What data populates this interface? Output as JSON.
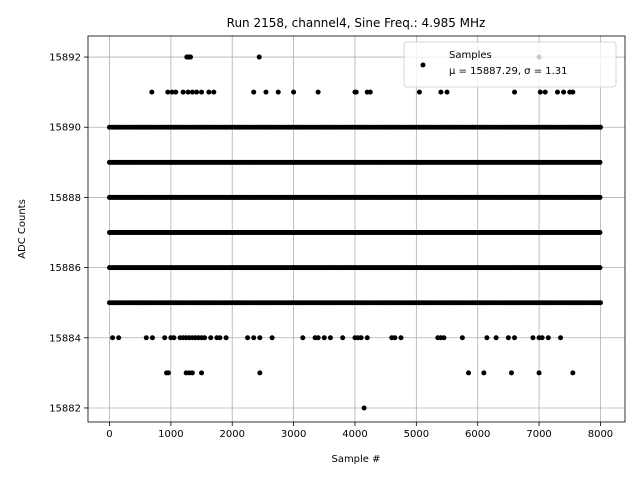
{
  "chart_data": {
    "type": "scatter",
    "title": "Run 2158, channel4, Sine Freq.: 4.985 MHz",
    "xlabel": "Sample #",
    "ylabel": "ADC Counts",
    "xlim": [
      -350,
      8400
    ],
    "ylim": [
      15881.6,
      15892.6
    ],
    "xticks": [
      0,
      1000,
      2000,
      3000,
      4000,
      5000,
      6000,
      7000,
      8000
    ],
    "xtick_labels": [
      "0",
      "1000",
      "2000",
      "3000",
      "4000",
      "5000",
      "6000",
      "7000",
      "8000"
    ],
    "yticks": [
      15882,
      15884,
      15886,
      15888,
      15890,
      15892
    ],
    "ytick_labels": [
      "15882",
      "15884",
      "15886",
      "15888",
      "15890",
      "15892"
    ],
    "grid": true,
    "legend": {
      "position": "top-right",
      "title": "Samples",
      "stats": "μ = 15887.29, σ = 1.31"
    },
    "series": [
      {
        "marker_color": "#000000",
        "dense_levels": [
          15885,
          15886,
          15887,
          15888,
          15889,
          15890
        ],
        "dense_range": [
          0,
          8000
        ],
        "sparse_points": {
          "15892": [
            1260,
            1290,
            1300,
            1320,
            2440,
            7000
          ],
          "15891": [
            690,
            950,
            1020,
            1080,
            1200,
            1280,
            1350,
            1420,
            1500,
            1620,
            1700,
            2350,
            2550,
            2750,
            3000,
            3400,
            4000,
            4020,
            4200,
            4250,
            5050,
            5400,
            5500,
            6600,
            7020,
            7100,
            7300,
            7400,
            7500,
            7550
          ],
          "15884": [
            50,
            150,
            600,
            700,
            900,
            1000,
            1050,
            1150,
            1200,
            1250,
            1300,
            1350,
            1400,
            1450,
            1500,
            1550,
            1650,
            1750,
            1800,
            1900,
            2250,
            2350,
            2450,
            2650,
            3150,
            3350,
            3400,
            3500,
            3600,
            3800,
            4000,
            4050,
            4100,
            4200,
            4600,
            4650,
            4750,
            5350,
            5400,
            5450,
            5750,
            6150,
            6300,
            6500,
            6600,
            6900,
            7000,
            7050,
            7150,
            7350
          ],
          "15883": [
            930,
            960,
            1250,
            1300,
            1350,
            1500,
            2450,
            5850,
            6100,
            6550,
            7000,
            7550
          ],
          "15882": [
            4150
          ]
        }
      }
    ]
  }
}
